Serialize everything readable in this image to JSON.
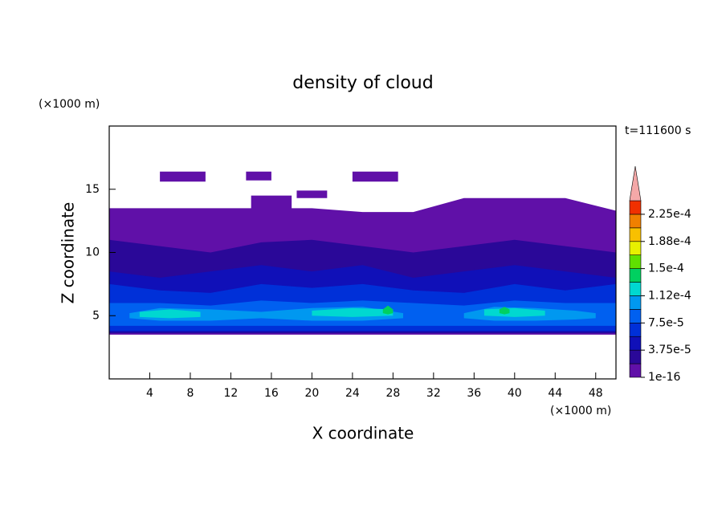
{
  "chart_data": {
    "type": "contour",
    "title": "density of cloud",
    "x_label": "X coordinate",
    "y_label": "Z coordinate",
    "x_unit": "(×1000 m)",
    "y_unit": "(×1000 m)",
    "annotation": "t=111600 s",
    "xlim": [
      0,
      50
    ],
    "xticks": [
      4,
      8,
      12,
      16,
      20,
      24,
      28,
      32,
      36,
      40,
      44,
      48
    ],
    "ylim": [
      0,
      20
    ],
    "yticks": [
      5,
      10,
      15
    ],
    "colorbar": {
      "levels": [
        1e-16,
        1.875e-05,
        3.75e-05,
        5.625e-05,
        7.5e-05,
        9.375e-05,
        0.0001125,
        0.00013125,
        0.00015,
        0.00016875,
        0.0001875,
        0.00020625,
        0.000225,
        0.00024375
      ],
      "colors": [
        "#6010a8",
        "#2a0898",
        "#1010b8",
        "#0030d8",
        "#0060f0",
        "#0098f0",
        "#00d8d0",
        "#00d060",
        "#60e000",
        "#e8f000",
        "#f8c000",
        "#f08000",
        "#f03000"
      ],
      "over_color": "#f4a8a8",
      "ticks": [
        {
          "value": 1e-16,
          "label": "1e-16"
        },
        {
          "value": 3.75e-05,
          "label": "3.75e-5"
        },
        {
          "value": 7.5e-05,
          "label": "7.5e-5"
        },
        {
          "value": 0.0001125,
          "label": "1.12e-4"
        },
        {
          "value": 0.00015,
          "label": "1.5e-4"
        },
        {
          "value": 0.0001875,
          "label": "1.88e-4"
        },
        {
          "value": 0.000225,
          "label": "2.25e-4"
        }
      ]
    },
    "layers": [
      {
        "level": 1e-16,
        "x": [
          0,
          5,
          10,
          15,
          20,
          25,
          30,
          35,
          40,
          45,
          50
        ],
        "top": [
          13.5,
          13.5,
          13.5,
          13.5,
          13.5,
          13.2,
          13.2,
          14.3,
          14.3,
          14.3,
          13.3
        ],
        "bottom": [
          3.5,
          3.5,
          3.5,
          3.5,
          3.5,
          3.5,
          3.5,
          3.5,
          3.5,
          3.5,
          3.5
        ]
      },
      {
        "level": 1e-16,
        "x": [
          5,
          9.5
        ],
        "top": [
          16.4,
          16.4
        ],
        "bottom": [
          15.6,
          15.6
        ]
      },
      {
        "level": 1e-16,
        "x": [
          13.5,
          16
        ],
        "top": [
          16.4,
          16.4
        ],
        "bottom": [
          15.7,
          15.7
        ]
      },
      {
        "level": 1e-16,
        "x": [
          24,
          28.5
        ],
        "top": [
          16.4,
          16.4
        ],
        "bottom": [
          15.6,
          15.6
        ]
      },
      {
        "level": 1e-16,
        "x": [
          18.5,
          21.5
        ],
        "top": [
          14.9,
          14.9
        ],
        "bottom": [
          14.3,
          14.3
        ]
      },
      {
        "level": 1e-16,
        "x": [
          14,
          18
        ],
        "top": [
          14.5,
          14.5
        ],
        "bottom": [
          13.2,
          13.2
        ]
      },
      {
        "level": 1.875e-05,
        "x": [
          0,
          5,
          10,
          15,
          20,
          25,
          30,
          35,
          40,
          45,
          50
        ],
        "top": [
          11,
          10.5,
          10,
          10.8,
          11,
          10.5,
          10,
          10.5,
          11,
          10.5,
          10
        ],
        "bottom": [
          3.6,
          3.6,
          3.6,
          3.6,
          3.6,
          3.6,
          3.6,
          3.6,
          3.6,
          3.6,
          3.6
        ]
      },
      {
        "level": 3.75e-05,
        "x": [
          0,
          5,
          10,
          15,
          20,
          25,
          30,
          35,
          40,
          45,
          50
        ],
        "top": [
          8.5,
          8,
          8.5,
          9,
          8.5,
          9,
          8,
          8.5,
          9,
          8.5,
          8
        ],
        "bottom": [
          3.7,
          3.7,
          3.7,
          3.7,
          3.7,
          3.7,
          3.7,
          3.7,
          3.7,
          3.7,
          3.7
        ]
      },
      {
        "level": 5.625e-05,
        "x": [
          0,
          5,
          10,
          15,
          20,
          25,
          30,
          35,
          40,
          45,
          50
        ],
        "top": [
          7.5,
          7,
          6.8,
          7.5,
          7.2,
          7.5,
          7,
          6.8,
          7.5,
          7,
          7.5
        ],
        "bottom": [
          3.8,
          3.8,
          3.8,
          3.8,
          3.8,
          3.8,
          3.8,
          3.8,
          3.8,
          3.8,
          3.8
        ]
      },
      {
        "level": 7.5e-05,
        "x": [
          0,
          5,
          10,
          15,
          20,
          25,
          30,
          35,
          40,
          45,
          50
        ],
        "top": [
          6,
          6,
          5.8,
          6.2,
          6,
          6.2,
          6,
          5.8,
          6.2,
          6,
          6
        ],
        "bottom": [
          4.2,
          4.2,
          4.2,
          4.2,
          4.2,
          4.2,
          4.2,
          4.2,
          4.2,
          4.2,
          4.2
        ]
      },
      {
        "level": 9.375e-05,
        "x": [
          2,
          5,
          10,
          15,
          20,
          25,
          29
        ],
        "top": [
          5.2,
          5.6,
          5.5,
          5.3,
          5.6,
          5.7,
          5.2
        ],
        "bottom": [
          4.8,
          4.6,
          4.6,
          4.8,
          4.6,
          4.6,
          4.8
        ]
      },
      {
        "level": 9.375e-05,
        "x": [
          35,
          38,
          42,
          46,
          48
        ],
        "top": [
          5.2,
          5.7,
          5.6,
          5.4,
          5.2
        ],
        "bottom": [
          4.8,
          4.6,
          4.6,
          4.7,
          4.8
        ]
      },
      {
        "level": 0.0001125,
        "x": [
          3,
          6,
          9
        ],
        "top": [
          5.3,
          5.5,
          5.3
        ],
        "bottom": [
          4.9,
          4.8,
          4.9
        ]
      },
      {
        "level": 0.0001125,
        "x": [
          20,
          24,
          28
        ],
        "top": [
          5.4,
          5.6,
          5.5
        ],
        "bottom": [
          5,
          4.9,
          5
        ]
      },
      {
        "level": 0.0001125,
        "x": [
          37,
          40,
          43
        ],
        "top": [
          5.5,
          5.6,
          5.4
        ],
        "bottom": [
          5,
          4.9,
          5
        ]
      },
      {
        "level": 0.00013125,
        "x": [
          27,
          27.5,
          28
        ],
        "top": [
          5.5,
          5.8,
          5.5
        ],
        "bottom": [
          5.2,
          5.1,
          5.2
        ]
      },
      {
        "level": 0.00013125,
        "x": [
          38.5,
          39,
          39.5
        ],
        "top": [
          5.5,
          5.7,
          5.5
        ],
        "bottom": [
          5.2,
          5.1,
          5.2
        ]
      }
    ]
  }
}
